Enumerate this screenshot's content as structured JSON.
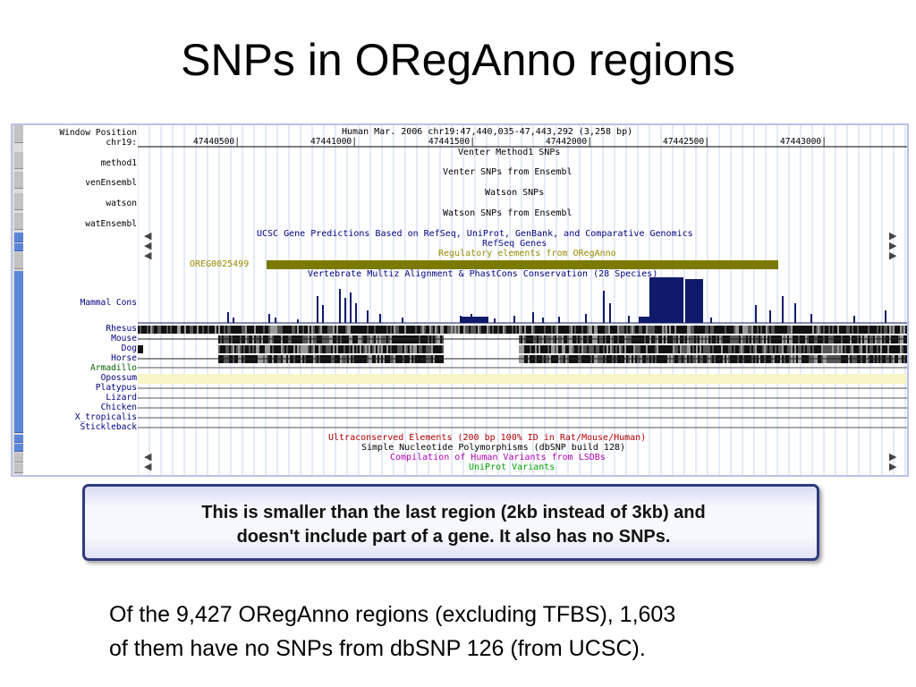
{
  "slide": {
    "title": "SNPs in ORegAnno regions",
    "callout": {
      "line1": "This is smaller than the last region (2kb instead of 3kb) and",
      "line2": "doesn't include part of a gene.  It also has no SNPs."
    },
    "note": {
      "line1": "Of the 9,427 ORegAnno regions (excluding TFBS),  1,603",
      "line2": "of them have no SNPs from dbSNP 126 (from UCSC)."
    }
  },
  "browser": {
    "header_label_1": "Window Position",
    "header_label_2": "chr19:",
    "position_title": "Human Mar. 2006   chr19:47,440,035-47,443,292 (3,258 bp)",
    "ticks": [
      "47440500|",
      "47441000|",
      "47441500|",
      "47442000|",
      "47442500|",
      "47443000|"
    ],
    "left_labels": [
      "method1",
      "venEnsembl",
      "watson",
      "watEnsembl",
      "Mammal Cons"
    ],
    "track_titles": {
      "venter_method1": "Venter Method1 SNPs",
      "venter_ensembl": "Venter SNPs from Ensembl",
      "watson": "Watson SNPs",
      "watson_ensembl": "Watson SNPs from Ensembl",
      "ucsc_genes": "UCSC Gene Predictions Based on RefSeq, UniProt, GenBank, and Comparative Genomics",
      "refseq": "RefSeq Genes",
      "oreganno": "Regulatory elements from ORegAnno",
      "multiz": "Vertebrate Multiz Alignment & PhastCons Conservation (28 Species)",
      "ultraconserved": "Ultraconserved Elements (200 bp 100% ID in Rat/Mouse/Human)",
      "snp": "Simple Nucleotide Polymorphisms (dbSNP build 128)",
      "lsdb": "Compilation of Human Variants from LSDBs",
      "uniprot": "UniProt Variants"
    },
    "oreganno_item": "OREG0025499",
    "species": [
      {
        "name": "Rhesus",
        "color": "blue"
      },
      {
        "name": "Mouse",
        "color": "blue"
      },
      {
        "name": "Dog",
        "color": "blue"
      },
      {
        "name": "Horse",
        "color": "blue"
      },
      {
        "name": "Armadillo",
        "color": "green"
      },
      {
        "name": "Opossum",
        "color": "blue"
      },
      {
        "name": "Platypus",
        "color": "blue"
      },
      {
        "name": "Lizard",
        "color": "blue"
      },
      {
        "name": "Chicken",
        "color": "blue"
      },
      {
        "name": "X_tropicalis",
        "color": "blue"
      },
      {
        "name": "Stickleback",
        "color": "blue"
      }
    ],
    "colors": {
      "blue_text": "#000080",
      "oreganno_bar": "#7a7a00",
      "oreganno_label": "#9a8a00",
      "refseq_text": "#0b0b8c",
      "conservation": "#0f1a6a",
      "ultraconserved_text": "#b00000",
      "lsdb_text": "#b000b0",
      "uniprot_text": "#00a000",
      "opossum_band": "#f7f4c8"
    }
  }
}
